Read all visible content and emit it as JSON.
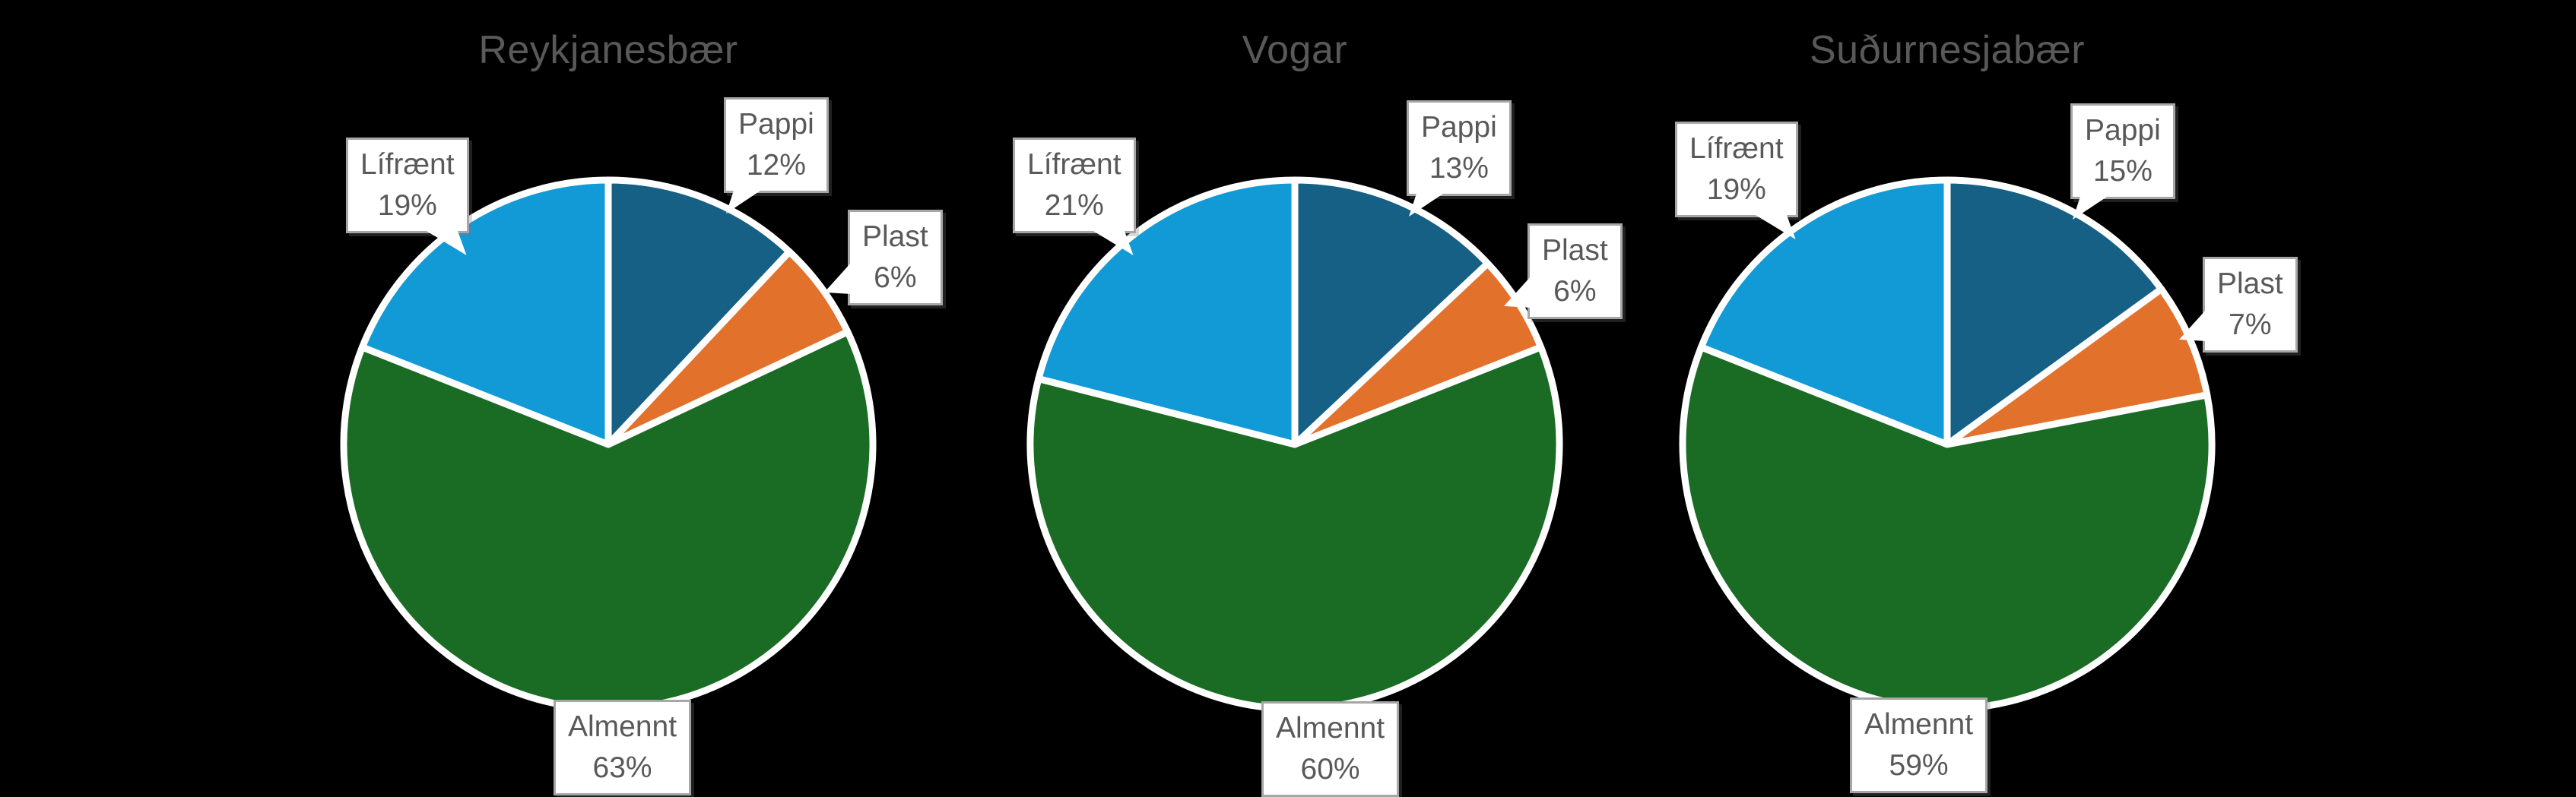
{
  "figure": {
    "background": "#000000",
    "title_color": "#595959",
    "label_color": "#595959",
    "callout_background": "#FFFFFF",
    "callout_border": "#A6A6A6",
    "slice_stroke": "#FFFFFF"
  },
  "chart_data": [
    {
      "type": "pie",
      "title": "Reykjanesbær",
      "categories": [
        "Pappi",
        "Plast",
        "Almennt",
        "Lífrænt"
      ],
      "keys": [
        "pappi",
        "plast",
        "almennt",
        "lifraent"
      ],
      "values": [
        12,
        6,
        63,
        19
      ],
      "value_labels": [
        "12%",
        "6%",
        "63%",
        "19%"
      ],
      "colors": [
        "#165F85",
        "#E2712C",
        "#1A6B24",
        "#129AD7"
      ],
      "start_angle": "top",
      "direction": "clockwise",
      "legend": "callout-labels"
    },
    {
      "type": "pie",
      "title": "Vogar",
      "categories": [
        "Pappi",
        "Plast",
        "Almennt",
        "Lífrænt"
      ],
      "keys": [
        "pappi",
        "plast",
        "almennt",
        "lifraent"
      ],
      "values": [
        13,
        6,
        60,
        21
      ],
      "value_labels": [
        "13%",
        "6%",
        "60%",
        "21%"
      ],
      "colors": [
        "#165F85",
        "#E2712C",
        "#1A6B24",
        "#129AD7"
      ],
      "start_angle": "top",
      "direction": "clockwise",
      "legend": "callout-labels"
    },
    {
      "type": "pie",
      "title": "Suðurnesjabær",
      "categories": [
        "Pappi",
        "Plast",
        "Almennt",
        "Lífrænt"
      ],
      "keys": [
        "pappi",
        "plast",
        "almennt",
        "lifraent"
      ],
      "values": [
        15,
        7,
        59,
        19
      ],
      "value_labels": [
        "15%",
        "7%",
        "59%",
        "19%"
      ],
      "colors": [
        "#165F85",
        "#E2712C",
        "#1A6B24",
        "#129AD7"
      ],
      "start_angle": "top",
      "direction": "clockwise",
      "legend": "callout-labels"
    }
  ]
}
